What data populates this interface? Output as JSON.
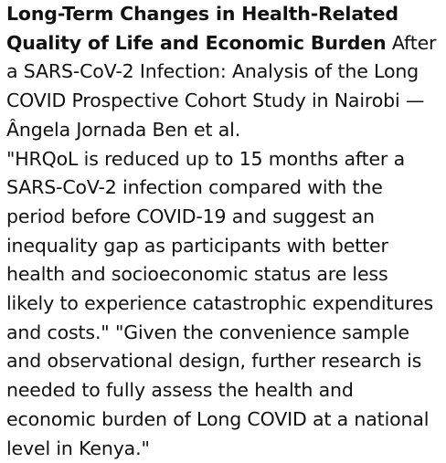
{
  "post": {
    "headline_bold": "Long-Term Changes in Health-Related Quality of Life and Economic Burden",
    "headline_rest": " After a SARS-CoV-2 Infection: Analysis of the Long COVID Prospective Cohort Study in Nairobi — Ângela Jornada Ben et al.",
    "quote": "\"HRQoL is reduced up to 15 months after a SARS-CoV-2 infection compared with the period before COVID-19 and suggest an inequality gap as participants with better health and socioeconomic status are less likely to experience catastrophic expenditures and costs.\" \"Given the convenience sample and observational design, further research is needed to fully assess the health and economic burden of Long COVID at a national level in Kenya.\""
  }
}
